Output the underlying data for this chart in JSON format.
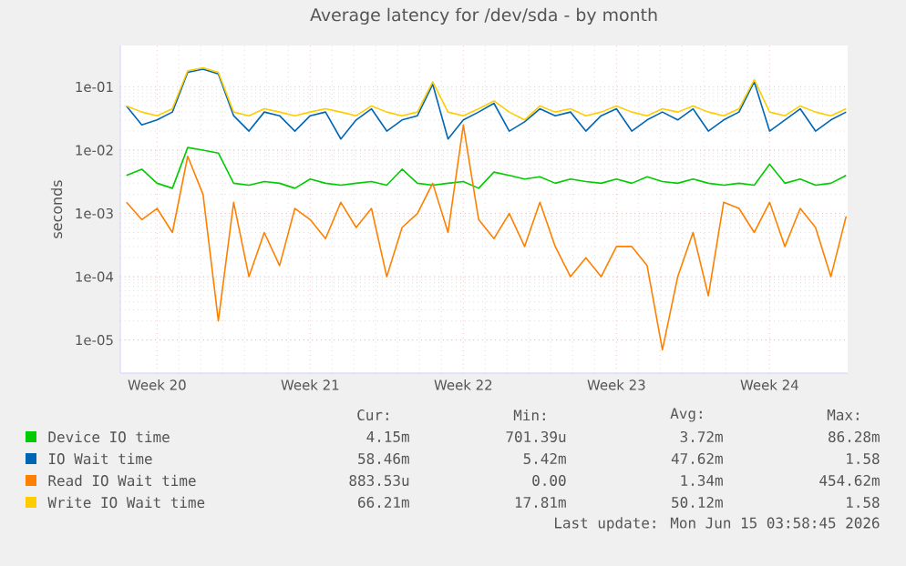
{
  "chart_data": {
    "type": "line",
    "title": "Average latency for /dev/sda - by month",
    "ylabel": "seconds",
    "log": "y",
    "grid": true,
    "legend": "bottom",
    "ylim": [
      3e-06,
      0.45
    ],
    "yticks": [
      {
        "value": 1e-05,
        "label": "1e-05"
      },
      {
        "value": 0.0001,
        "label": "1e-04"
      },
      {
        "value": 0.001,
        "label": "1e-03"
      },
      {
        "value": 0.01,
        "label": "1e-02"
      },
      {
        "value": 0.1,
        "label": "1e-01"
      }
    ],
    "categories": [
      null,
      null,
      "Week 20",
      null,
      null,
      null,
      null,
      null,
      null,
      null,
      null,
      null,
      "Week 21",
      null,
      null,
      null,
      null,
      null,
      null,
      null,
      null,
      null,
      "Week 22",
      null,
      null,
      null,
      null,
      null,
      null,
      null,
      null,
      null,
      "Week 23",
      null,
      null,
      null,
      null,
      null,
      null,
      null,
      null,
      null,
      "Week 24",
      null,
      null,
      null,
      null,
      null
    ],
    "series": [
      {
        "name": "Device IO time",
        "color": "#00cc00",
        "values": [
          0.004,
          0.005,
          0.003,
          0.0025,
          0.011,
          0.01,
          0.009,
          0.003,
          0.0028,
          0.0032,
          0.003,
          0.0025,
          0.0035,
          0.003,
          0.0028,
          0.003,
          0.0032,
          0.0028,
          0.005,
          0.003,
          0.0028,
          0.003,
          0.0032,
          0.0025,
          0.0045,
          0.004,
          0.0035,
          0.0038,
          0.003,
          0.0035,
          0.0032,
          0.003,
          0.0035,
          0.003,
          0.0038,
          0.0032,
          0.003,
          0.0035,
          0.003,
          0.0028,
          0.003,
          0.0028,
          0.006,
          0.003,
          0.0035,
          0.0028,
          0.003,
          0.004
        ]
      },
      {
        "name": "IO Wait time",
        "color": "#0066b3",
        "values": [
          0.05,
          0.025,
          0.03,
          0.04,
          0.17,
          0.19,
          0.16,
          0.035,
          0.02,
          0.04,
          0.035,
          0.02,
          0.035,
          0.04,
          0.015,
          0.03,
          0.045,
          0.02,
          0.03,
          0.035,
          0.11,
          0.015,
          0.03,
          0.04,
          0.055,
          0.02,
          0.028,
          0.045,
          0.035,
          0.04,
          0.02,
          0.035,
          0.045,
          0.02,
          0.03,
          0.04,
          0.03,
          0.045,
          0.02,
          0.03,
          0.04,
          0.12,
          0.02,
          0.03,
          0.045,
          0.02,
          0.03,
          0.04
        ]
      },
      {
        "name": "Read IO Wait time",
        "color": "#ff8000",
        "values": [
          0.0015,
          0.0008,
          0.0012,
          0.0005,
          0.008,
          0.002,
          2e-05,
          0.0015,
          0.0001,
          0.0005,
          0.00015,
          0.0012,
          0.0008,
          0.0004,
          0.0015,
          0.0006,
          0.0012,
          0.0001,
          0.0006,
          0.001,
          0.003,
          0.0005,
          0.025,
          0.0008,
          0.0004,
          0.001,
          0.0003,
          0.0015,
          0.0003,
          0.0001,
          0.0002,
          0.0001,
          0.0003,
          0.0003,
          0.00015,
          7e-06,
          0.0001,
          0.0005,
          5e-05,
          0.0015,
          0.0012,
          0.0005,
          0.0015,
          0.0003,
          0.0012,
          0.0006,
          0.0001,
          0.0009
        ]
      },
      {
        "name": "Write IO Wait time",
        "color": "#ffcc00",
        "values": [
          0.05,
          0.04,
          0.035,
          0.045,
          0.18,
          0.2,
          0.17,
          0.04,
          0.035,
          0.045,
          0.04,
          0.035,
          0.04,
          0.045,
          0.04,
          0.035,
          0.05,
          0.04,
          0.035,
          0.04,
          0.12,
          0.04,
          0.035,
          0.045,
          0.06,
          0.04,
          0.03,
          0.05,
          0.04,
          0.045,
          0.035,
          0.04,
          0.05,
          0.04,
          0.035,
          0.045,
          0.04,
          0.05,
          0.04,
          0.035,
          0.045,
          0.13,
          0.04,
          0.035,
          0.05,
          0.04,
          0.035,
          0.045
        ]
      }
    ],
    "annotations": [
      "Cur:",
      "Min:",
      "Avg:",
      "Max:",
      "4.15m",
      "701.39u",
      "3.72m",
      "86.28m",
      "58.46m",
      "5.42m",
      "47.62m",
      "1.58",
      "883.53u",
      "0.00",
      "1.34m",
      "454.62m",
      "66.21m",
      "17.81m",
      "50.12m",
      "1.58",
      "Last update: Mon Jun 15 03:58:45 2026"
    ]
  }
}
